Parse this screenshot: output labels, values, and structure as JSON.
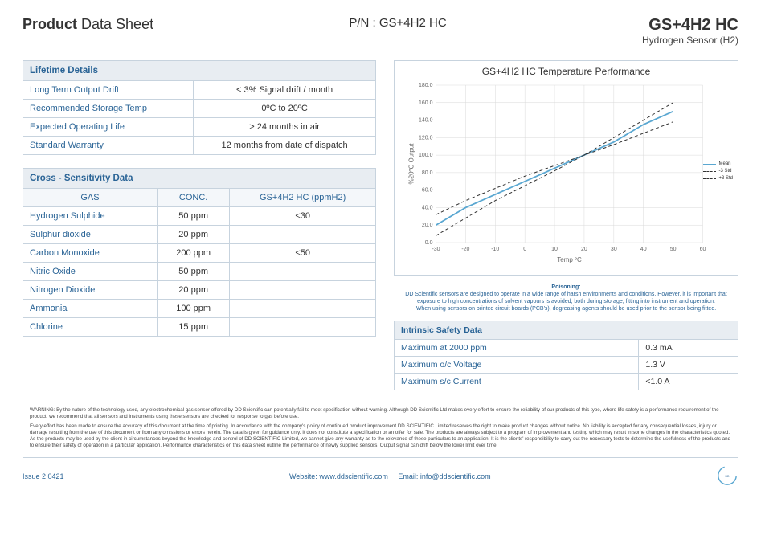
{
  "header": {
    "title_bold": "Product",
    "title_rest": " Data Sheet",
    "pn_label": "P/N : GS+4H2 HC",
    "product_code": "GS+4H2 HC",
    "product_sub": "Hydrogen Sensor (H2)"
  },
  "lifetime": {
    "section": "Lifetime Details",
    "rows": [
      {
        "label": "Long Term Output Drift",
        "value": "< 3% Signal drift / month"
      },
      {
        "label": "Recommended Storage Temp",
        "value": "0ºC to 20ºC"
      },
      {
        "label": "Expected Operating Life",
        "value": "> 24 months in air"
      },
      {
        "label": "Standard Warranty",
        "value": "12 months from date of dispatch"
      }
    ]
  },
  "cross": {
    "section": "Cross - Sensitivity Data",
    "columns": [
      "GAS",
      "CONC.",
      "GS+4H2 HC (ppmH2)"
    ],
    "rows": [
      {
        "gas": "Hydrogen Sulphide",
        "conc": "50 ppm",
        "resp": "<30"
      },
      {
        "gas": "Sulphur dioxide",
        "conc": "20 ppm",
        "resp": ""
      },
      {
        "gas": "Carbon Monoxide",
        "conc": "200 ppm",
        "resp": "<50"
      },
      {
        "gas": "Nitric Oxide",
        "conc": "50 ppm",
        "resp": ""
      },
      {
        "gas": "Nitrogen Dioxide",
        "conc": "20 ppm",
        "resp": ""
      },
      {
        "gas": "Ammonia",
        "conc": "100 ppm",
        "resp": ""
      },
      {
        "gas": "Chlorine",
        "conc": "15 ppm",
        "resp": ""
      }
    ]
  },
  "chart": {
    "title": "GS+4H2 HC Temperature Performance",
    "type": "line",
    "x_label": "Temp ºC",
    "y_label": "%20ºC Output",
    "xlim": [
      -30,
      60
    ],
    "ylim": [
      0,
      180
    ],
    "xtick_step": 10,
    "ytick_step": 20,
    "x_ticks": [
      -30,
      -20,
      -10,
      0,
      10,
      20,
      30,
      40,
      50,
      60
    ],
    "y_ticks": [
      0,
      20,
      40,
      60,
      80,
      100,
      120,
      140,
      160,
      180
    ],
    "grid_color": "#d9d9d9",
    "background_color": "#ffffff",
    "tick_fontsize": 7,
    "label_fontsize": 8,
    "title_fontsize": 12,
    "series": [
      {
        "name": "Mean",
        "color": "#5aa7d1",
        "dash": "none",
        "width": 1.8,
        "x": [
          -30,
          -20,
          -10,
          0,
          10,
          20,
          30,
          40,
          50
        ],
        "y": [
          20,
          40,
          55,
          70,
          85,
          100,
          115,
          135,
          150
        ]
      },
      {
        "name": "-3 Std",
        "color": "#333333",
        "dash": "4,3",
        "width": 1,
        "x": [
          -30,
          -20,
          -10,
          0,
          10,
          20,
          30,
          40,
          50
        ],
        "y": [
          8,
          28,
          48,
          65,
          82,
          100,
          120,
          140,
          160
        ]
      },
      {
        "name": "+3 Std",
        "color": "#333333",
        "dash": "4,3",
        "width": 1,
        "x": [
          -30,
          -20,
          -10,
          0,
          10,
          20,
          30,
          40,
          50
        ],
        "y": [
          32,
          48,
          62,
          76,
          88,
          100,
          112,
          125,
          138
        ]
      }
    ],
    "legend_labels": [
      "Mean",
      "-3 Std",
      "+3 Std"
    ]
  },
  "poisoning": {
    "title": "Poisoning:",
    "line1": "DD Scientific sensors are designed to operate in a wide range of harsh environments and conditions. However, it is important that exposure to high concentrations of solvent vapours is avoided, both during storage, fitting into instrument and operation.",
    "line2": "When using sensors on printed circuit boards (PCB's), degreasing agents should be used prior to the sensor being fitted."
  },
  "safety": {
    "section": "Intrinsic Safety Data",
    "rows": [
      {
        "label": "Maximum at 2000 ppm",
        "value": "0.3 mA"
      },
      {
        "label": "Maximum o/c Voltage",
        "value": "1.3 V"
      },
      {
        "label": "Maximum s/c Current",
        "value": "<1.0 A"
      }
    ]
  },
  "warning": {
    "p1": "WARNING: By the nature of the technology used, any electrochemical gas sensor offered by DD Scientific can potentially fail to meet specification without warning. Although DD Scientific Ltd makes every effort to ensure the reliability of our products of this type, where life safety is a performance requirement of the product, we recommend that all sensors and instruments using these sensors are checked for response to gas before use.",
    "p2": "Every effort has been made to ensure the accuracy of this document at the time of printing. In accordance with the company's policy of continued product improvement DD SCIENTIFIC Limited reserves the right to make product changes without notice. No liability is accepted for any consequential losses, injury or damage resulting from the use of this document or from any omissions or errors herein. The data is given for guidance only. It does not constitute a specification or an offer for sale. The products are always subject to a program of improvement and testing which may result in some changes in the characteristics quoted. As the products may be used by the client in circumstances beyond the knowledge and control of DD SCIENTIFIC Limited, we cannot give any warranty as to the relevance of these particulars to an application. It is the clients' responsibility to carry out the necessary tests to determine the usefulness of the products and to ensure their safety of operation in a particular application. Performance characteristics on this data sheet outline the performance of newly supplied sensors. Output signal can drift below the lower limit over time."
  },
  "footer": {
    "issue": "Issue 2 0421",
    "website_label": "Website:",
    "website": "www.ddscientific.com",
    "email_label": "Email:",
    "email": "info@ddscientific.com",
    "logo_text": "DD Scientific"
  },
  "colors": {
    "border": "#c7d3de",
    "header_bg": "#e8edf2",
    "link": "#2a6496"
  }
}
